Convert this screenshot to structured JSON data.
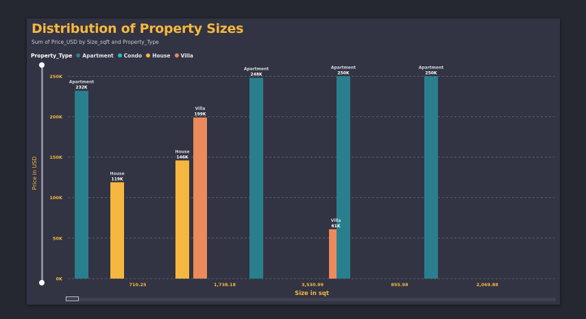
{
  "chart_data": {
    "type": "bar",
    "title": "Distribution of Property Sizes",
    "subtitle": "Sum of Price_USD by Size_sqft and Property_Type",
    "xlabel": "Size in sqt",
    "ylabel": "Price in USD",
    "ylim": [
      0,
      260000
    ],
    "yticks": [
      0,
      50000,
      100000,
      150000,
      200000,
      250000
    ],
    "ytick_labels": [
      "0K",
      "50K",
      "100K",
      "150K",
      "200K",
      "250K"
    ],
    "grid": true,
    "legend_title": "Property_Type",
    "legend_position": "top-left",
    "legend": [
      {
        "name": "Apartment",
        "color": "#2A7F8E"
      },
      {
        "name": "Condo",
        "color": "#1FC0BB"
      },
      {
        "name": "House",
        "color": "#F5B73F"
      },
      {
        "name": "Villa",
        "color": "#EC8A5B"
      }
    ],
    "categories": [
      "710.25",
      "1,738.18",
      "3,530.99",
      "855.98",
      "2,069.88"
    ],
    "bars": [
      {
        "category": "710.25",
        "series": "Apartment",
        "value": 232000,
        "label": "232K"
      },
      {
        "category": "710.25",
        "series": "House",
        "value": 119000,
        "label": "119K"
      },
      {
        "category": "1,738.18",
        "series": "House",
        "value": 146000,
        "label": "146K"
      },
      {
        "category": "1,738.18",
        "series": "Villa",
        "value": 199000,
        "label": "199K"
      },
      {
        "category": "3,530.99",
        "series": "Apartment",
        "value": 248000,
        "label": "248K"
      },
      {
        "category": "3,530.99",
        "series": "Villa",
        "value": 61000,
        "label": "61K"
      },
      {
        "category": "855.98",
        "series": "Apartment",
        "value": 250000,
        "label": "250K"
      },
      {
        "category": "2,069.88",
        "series": "Apartment",
        "value": 250000,
        "label": "250K"
      }
    ]
  }
}
